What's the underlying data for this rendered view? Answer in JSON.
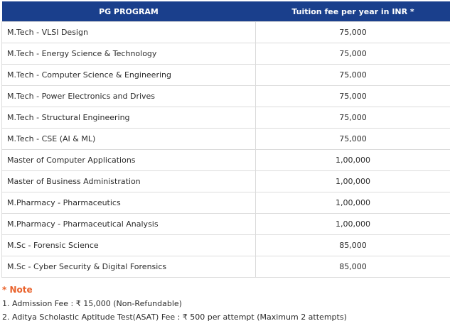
{
  "table": {
    "header": {
      "program": "PG PROGRAM",
      "fee": "Tuition fee per year in INR *"
    },
    "rows": [
      {
        "program": "M.Tech - VLSI Design",
        "fee": "75,000"
      },
      {
        "program": "M.Tech - Energy Science & Technology",
        "fee": "75,000"
      },
      {
        "program": "M.Tech - Computer Science & Engineering",
        "fee": "75,000"
      },
      {
        "program": "M.Tech - Power Electronics and Drives",
        "fee": "75,000"
      },
      {
        "program": "M.Tech - Structural Engineering",
        "fee": "75,000"
      },
      {
        "program": "M.Tech - CSE (AI & ML)",
        "fee": "75,000"
      },
      {
        "program": "Master of Computer Applications",
        "fee": "1,00,000"
      },
      {
        "program": "Master of Business Administration",
        "fee": "1,00,000"
      },
      {
        "program": "M.Pharmacy - Pharmaceutics",
        "fee": "1,00,000"
      },
      {
        "program": "M.Pharmacy - Pharmaceutical Analysis",
        "fee": "1,00,000"
      },
      {
        "program": "M.Sc - Forensic Science",
        "fee": "85,000"
      },
      {
        "program": "M.Sc - Cyber Security & Digital Forensics",
        "fee": "85,000"
      }
    ]
  },
  "note": {
    "title": "* Note",
    "lines": [
      "1. Admission Fee : ₹ 15,000 (Non-Refundable)",
      "2. Aditya Scholastic Aptitude Test(ASAT) Fee : ₹ 500 per attempt (Maximum 2 attempts)"
    ]
  },
  "colors": {
    "header_bg": "#1a3f8c",
    "header_text": "#ffffff",
    "note_accent": "#e9612a",
    "border": "#dcdcdc"
  }
}
